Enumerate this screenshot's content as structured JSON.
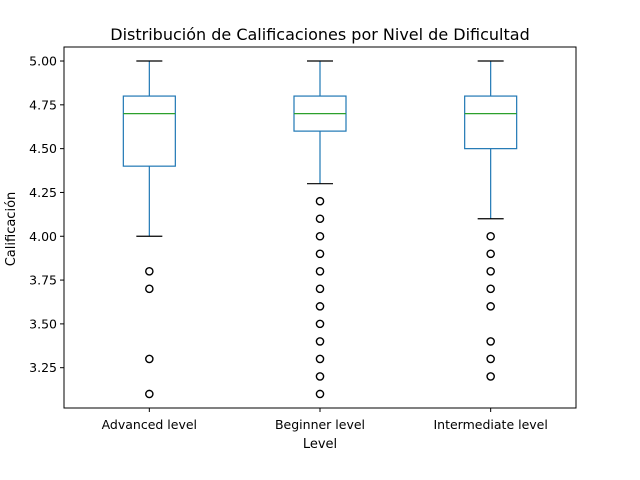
{
  "chart_data": {
    "type": "boxplot",
    "title": "Distribución de Calificaciones por Nivel de Dificultad",
    "xlabel": "Level",
    "ylabel": "Calificación",
    "ylim": [
      3.02,
      5.08
    ],
    "yticks": [
      3.25,
      3.5,
      3.75,
      4.0,
      4.25,
      4.5,
      4.75,
      5.0
    ],
    "ytick_labels": [
      "3.25",
      "3.50",
      "3.75",
      "4.00",
      "4.25",
      "4.50",
      "4.75",
      "5.00"
    ],
    "grid": false,
    "box_color": "#1f77b4",
    "median_color": "#2ca02c",
    "outlier_color": "#000000",
    "categories": [
      "Advanced level",
      "Beginner level",
      "Intermediate level"
    ],
    "boxes": [
      {
        "whisker_low": 4.0,
        "q1": 4.4,
        "median": 4.7,
        "q3": 4.8,
        "whisker_high": 5.0,
        "outliers": [
          3.8,
          3.7,
          3.3,
          3.1
        ]
      },
      {
        "whisker_low": 4.3,
        "q1": 4.6,
        "median": 4.7,
        "q3": 4.8,
        "whisker_high": 5.0,
        "outliers": [
          4.2,
          4.1,
          4.0,
          3.9,
          3.8,
          3.7,
          3.6,
          3.5,
          3.4,
          3.3,
          3.2,
          3.1
        ]
      },
      {
        "whisker_low": 4.1,
        "q1": 4.5,
        "median": 4.7,
        "q3": 4.8,
        "whisker_high": 5.0,
        "outliers": [
          4.0,
          3.9,
          3.8,
          3.7,
          3.6,
          3.4,
          3.3,
          3.2
        ]
      }
    ]
  }
}
